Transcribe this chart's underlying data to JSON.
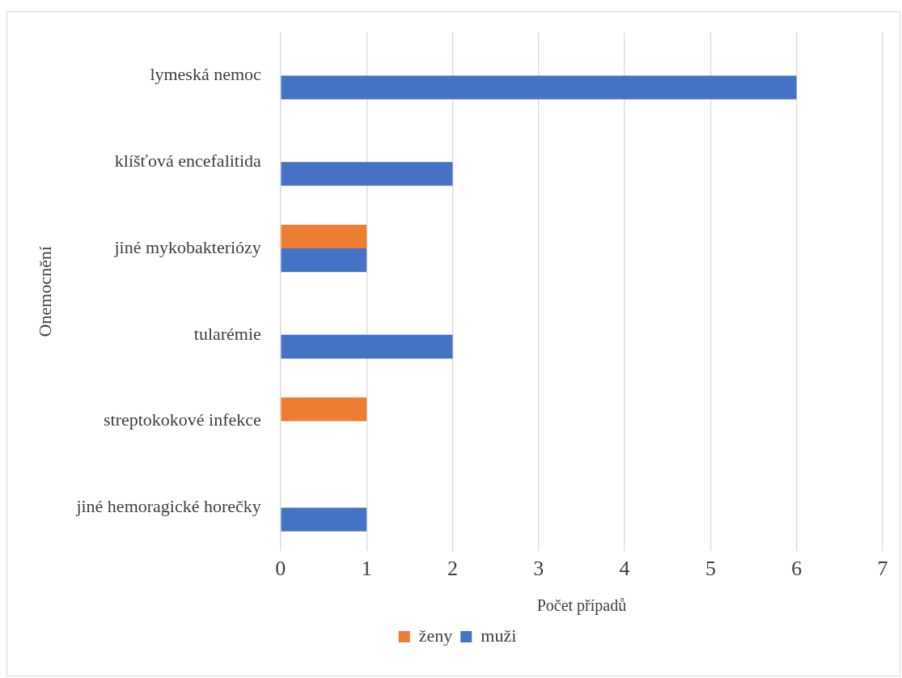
{
  "chart_data": {
    "type": "bar",
    "orientation": "horizontal",
    "xlabel": "Počet případů",
    "ylabel": "Onemocnění",
    "categories": [
      "lymeská nemoc",
      "klíšťová encefalitida",
      "jiné mykobakteriózy",
      "tularémie",
      "streptokokové infekce",
      "jiné hemoragické horečky"
    ],
    "series": [
      {
        "name": "ženy",
        "color": "#ed7d31",
        "values": [
          0,
          0,
          1,
          0,
          1,
          0
        ]
      },
      {
        "name": "muži",
        "color": "#4472c4",
        "values": [
          6,
          2,
          1,
          2,
          0,
          1
        ]
      }
    ],
    "xlim": [
      0,
      7
    ],
    "xticks": [
      0,
      1,
      2,
      3,
      4,
      5,
      6,
      7
    ],
    "grid": "x",
    "legend": "bottom"
  }
}
